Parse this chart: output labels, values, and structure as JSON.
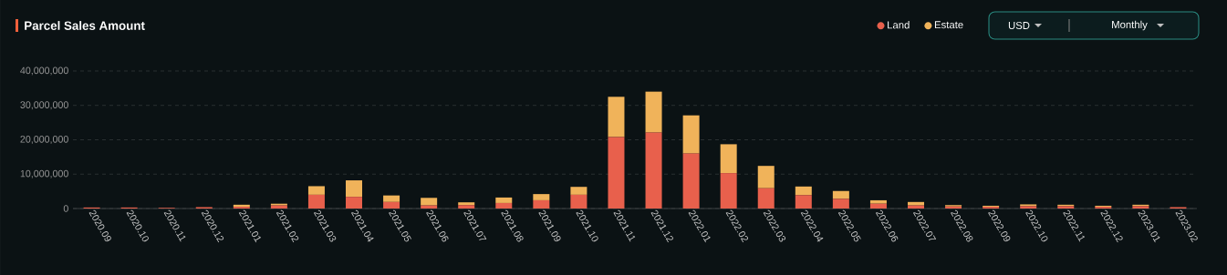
{
  "chart_data": {
    "type": "bar",
    "title": "Parcel Sales Amount",
    "stacked": true,
    "categories": [
      "2020.09",
      "2020.10",
      "2020.11",
      "2020.12",
      "2021.01",
      "2021.02",
      "2021.03",
      "2021.04",
      "2021.05",
      "2021.06",
      "2021.07",
      "2021.08",
      "2021.09",
      "2021.10",
      "2021.11",
      "2021.12",
      "2022.01",
      "2022.02",
      "2022.03",
      "2022.04",
      "2022.05",
      "2022.06",
      "2022.07",
      "2022.08",
      "2022.09",
      "2022.10",
      "2022.11",
      "2022.12",
      "2023.01",
      "2023.02"
    ],
    "series": [
      {
        "name": "Land",
        "color": "#e8604c",
        "values": [
          300000,
          300000,
          200000,
          400000,
          500000,
          900000,
          4000000,
          3400000,
          1900000,
          900000,
          1000000,
          1600000,
          2400000,
          4000000,
          20800000,
          22100000,
          16000000,
          10300000,
          5900000,
          3900000,
          2800000,
          1400000,
          900000,
          600000,
          500000,
          700000,
          700000,
          500000,
          700000,
          400000
        ]
      },
      {
        "name": "Estate",
        "color": "#f0b35a",
        "values": [
          null,
          null,
          null,
          null,
          600000,
          500000,
          2500000,
          4800000,
          1900000,
          2200000,
          800000,
          1600000,
          1800000,
          2300000,
          11700000,
          11900000,
          11100000,
          8400000,
          6500000,
          2500000,
          2300000,
          1000000,
          1000000,
          400000,
          300000,
          500000,
          400000,
          300000,
          400000,
          null
        ]
      }
    ],
    "ylim": [
      0,
      40000000
    ],
    "yticks": [
      0,
      {
        "value": 10000000,
        "label": "10,000,000"
      },
      {
        "value": 20000000,
        "label": "20,000,000"
      },
      {
        "value": 30000000,
        "label": "30,000,000"
      },
      {
        "value": 40000000,
        "label": "40,000,000"
      }
    ],
    "grid": "y",
    "legend": "top right",
    "annotations": [
      "USD",
      "Monthly"
    ]
  }
}
